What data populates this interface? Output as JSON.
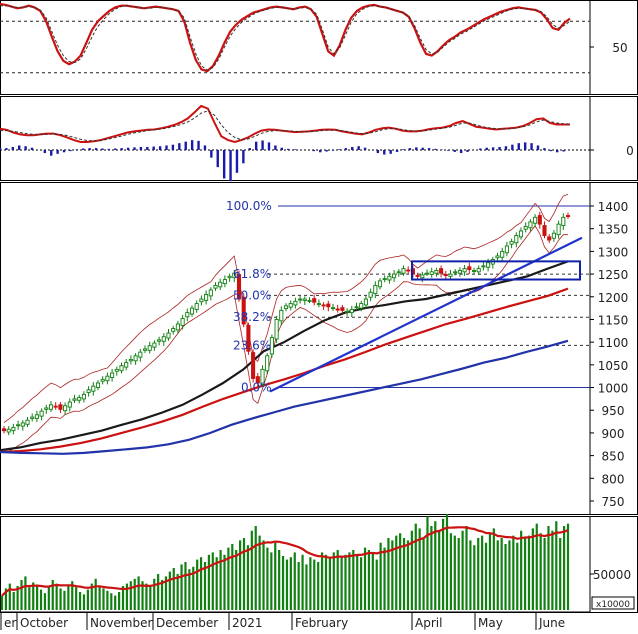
{
  "chart_data": [
    {
      "panel": "oscillator",
      "type": "line",
      "ylim": [
        0,
        100
      ],
      "y_ticks": [
        "50"
      ],
      "reference_levels": [
        80,
        20
      ],
      "series": [
        {
          "color": "#cc1111",
          "style": "solid",
          "values": [
            100,
            99,
            97,
            95,
            96,
            98,
            96,
            92,
            80,
            62,
            45,
            34,
            30,
            33,
            40,
            55,
            70,
            80,
            86,
            92,
            96,
            98,
            98,
            97,
            96,
            95,
            96,
            97,
            96,
            95,
            94,
            92,
            80,
            55,
            35,
            24,
            22,
            28,
            40,
            55,
            68,
            76,
            82,
            86,
            90,
            92,
            94,
            96,
            97,
            96,
            95,
            94,
            96,
            97,
            94,
            85,
            65,
            45,
            40,
            52,
            70,
            84,
            92,
            96,
            98,
            99,
            97,
            96,
            94,
            92,
            90,
            85,
            72,
            55,
            42,
            40,
            45,
            52,
            58,
            62,
            67,
            70,
            74,
            78,
            82,
            85,
            88,
            91,
            93,
            95,
            96,
            95,
            94,
            93,
            90,
            82,
            72,
            70,
            78,
            83
          ]
        },
        {
          "color": "#333333",
          "style": "dashed",
          "values": [
            98,
            98,
            97,
            96,
            96,
            97,
            96,
            93,
            84,
            68,
            52,
            40,
            33,
            32,
            36,
            48,
            62,
            74,
            82,
            89,
            94,
            97,
            98,
            97,
            96,
            95,
            95,
            96,
            96,
            95,
            94,
            92,
            84,
            62,
            42,
            28,
            23,
            26,
            36,
            50,
            63,
            72,
            79,
            84,
            88,
            91,
            93,
            95,
            96,
            96,
            95,
            94,
            95,
            96,
            94,
            88,
            70,
            50,
            42,
            49,
            64,
            79,
            89,
            94,
            97,
            98,
            97,
            96,
            94,
            92,
            90,
            86,
            75,
            60,
            47,
            42,
            44,
            50,
            56,
            60,
            65,
            68,
            72,
            76,
            80,
            83,
            86,
            89,
            92,
            94,
            95,
            95,
            94,
            93,
            91,
            85,
            76,
            72,
            75,
            80
          ]
        }
      ]
    },
    {
      "panel": "macd",
      "type": "bar",
      "y_ticks": [
        "0"
      ],
      "ylim": [
        -1,
        1
      ],
      "histogram": [
        0.05,
        0.05,
        0.08,
        0.12,
        0.1,
        0.06,
        0.0,
        -0.08,
        -0.15,
        -0.1,
        -0.06,
        -0.03,
        0.02,
        0.04,
        0.05,
        0.05,
        0.04,
        0.03,
        0.04,
        0.05,
        0.06,
        0.07,
        0.08,
        0.08,
        0.09,
        0.1,
        0.12,
        0.14,
        0.18,
        0.22,
        0.26,
        0.24,
        0.12,
        -0.2,
        -0.45,
        -0.75,
        -0.82,
        -0.6,
        -0.35,
        0.05,
        0.22,
        0.25,
        0.2,
        0.12,
        0.06,
        0.03,
        0.02,
        0.01,
        0.0,
        -0.03,
        -0.06,
        -0.04,
        -0.02,
        0.02,
        0.05,
        0.08,
        0.1,
        0.06,
        0.0,
        -0.08,
        -0.12,
        -0.1,
        -0.05,
        0.02,
        0.05,
        0.07,
        0.06,
        0.05,
        0.03,
        0.01,
        -0.02,
        -0.05,
        -0.08,
        -0.05,
        0.0,
        0.04,
        0.06,
        0.07,
        0.08,
        0.1,
        0.14,
        0.18,
        0.2,
        0.18,
        0.12,
        0.05,
        -0.03,
        -0.06,
        -0.04,
        0.0
      ],
      "series": [
        {
          "color": "#cc1111",
          "style": "solid",
          "values": [
            0.35,
            0.32,
            0.25,
            0.2,
            0.18,
            0.18,
            0.2,
            0.22,
            0.22,
            0.18,
            0.12,
            0.05,
            0.0,
            0.0,
            0.02,
            0.05,
            0.1,
            0.15,
            0.2,
            0.25,
            0.28,
            0.3,
            0.32,
            0.33,
            0.36,
            0.4,
            0.45,
            0.52,
            0.62,
            0.78,
            0.95,
            0.88,
            0.5,
            0.15,
            0.05,
            0.0,
            0.05,
            0.12,
            0.22,
            0.3,
            0.33,
            0.32,
            0.3,
            0.28,
            0.26,
            0.27,
            0.28,
            0.3,
            0.32,
            0.33,
            0.32,
            0.28,
            0.25,
            0.22,
            0.2,
            0.25,
            0.32,
            0.36,
            0.38,
            0.35,
            0.3,
            0.28,
            0.28,
            0.3,
            0.34,
            0.36,
            0.38,
            0.42,
            0.5,
            0.55,
            0.48,
            0.4,
            0.38,
            0.35,
            0.33,
            0.35,
            0.36,
            0.38,
            0.42,
            0.5,
            0.6,
            0.62,
            0.5,
            0.46,
            0.46,
            0.46
          ]
        },
        {
          "color": "#333333",
          "style": "dashed",
          "values": [
            0.3,
            0.3,
            0.28,
            0.25,
            0.22,
            0.2,
            0.2,
            0.2,
            0.21,
            0.2,
            0.17,
            0.12,
            0.07,
            0.04,
            0.03,
            0.04,
            0.07,
            0.11,
            0.15,
            0.2,
            0.24,
            0.27,
            0.3,
            0.32,
            0.34,
            0.37,
            0.41,
            0.46,
            0.53,
            0.63,
            0.76,
            0.82,
            0.7,
            0.45,
            0.25,
            0.12,
            0.06,
            0.08,
            0.15,
            0.23,
            0.28,
            0.3,
            0.3,
            0.29,
            0.28,
            0.27,
            0.27,
            0.28,
            0.3,
            0.31,
            0.31,
            0.3,
            0.27,
            0.24,
            0.22,
            0.23,
            0.27,
            0.32,
            0.35,
            0.35,
            0.33,
            0.3,
            0.29,
            0.29,
            0.31,
            0.34,
            0.36,
            0.39,
            0.44,
            0.5,
            0.5,
            0.45,
            0.4,
            0.37,
            0.35,
            0.34,
            0.35,
            0.37,
            0.4,
            0.45,
            0.53,
            0.58,
            0.54,
            0.5,
            0.48,
            0.47
          ]
        }
      ]
    },
    {
      "panel": "price",
      "type": "line",
      "ylim": [
        720,
        1450
      ],
      "y_ticks": [
        "1400",
        "1350",
        "1300",
        "1250",
        "1200",
        "1150",
        "1100",
        "1050",
        "1000",
        "950",
        "900",
        "850",
        "800",
        "750"
      ],
      "close": [
        905,
        908,
        912,
        918,
        922,
        928,
        935,
        940,
        948,
        955,
        962,
        958,
        952,
        960,
        968,
        975,
        978,
        985,
        995,
        1003,
        1010,
        1018,
        1025,
        1032,
        1040,
        1048,
        1055,
        1062,
        1070,
        1078,
        1085,
        1092,
        1098,
        1105,
        1112,
        1120,
        1130,
        1140,
        1152,
        1165,
        1175,
        1185,
        1195,
        1205,
        1215,
        1225,
        1232,
        1238,
        1245,
        1252,
        1195,
        1140,
        1080,
        1020,
        1010,
        1040,
        1070,
        1110,
        1150,
        1170,
        1180,
        1185,
        1190,
        1195,
        1195,
        1192,
        1188,
        1185,
        1180,
        1178,
        1176,
        1172,
        1170,
        1168,
        1172,
        1178,
        1185,
        1195,
        1210,
        1225,
        1235,
        1240,
        1245,
        1250,
        1255,
        1262,
        1258,
        1250,
        1245,
        1248,
        1252,
        1255,
        1258,
        1252,
        1248,
        1250,
        1255,
        1258,
        1262,
        1260,
        1258,
        1262,
        1268,
        1275,
        1282,
        1290,
        1300,
        1312,
        1322,
        1335,
        1345,
        1355,
        1365,
        1375,
        1360,
        1335,
        1325,
        1340,
        1360,
        1375,
        1378
      ],
      "series": [
        {
          "name": "",
          "color": "#1a1a1a",
          "role": "moving-average",
          "values": [
            862,
            868,
            878,
            885,
            895,
            905,
            918,
            930,
            945,
            962,
            985,
            1010,
            1040,
            1080,
            1100,
            1125,
            1148,
            1165,
            1175,
            1182,
            1190,
            1195,
            1205,
            1215,
            1225,
            1235,
            1245,
            1262,
            1278
          ]
        },
        {
          "name": "",
          "color": "#cc1111",
          "role": "moving-average",
          "values": [
            858,
            860,
            864,
            870,
            878,
            888,
            900,
            912,
            925,
            940,
            958,
            975,
            990,
            1005,
            1018,
            1032,
            1048,
            1062,
            1078,
            1095,
            1110,
            1125,
            1140,
            1152,
            1165,
            1178,
            1190,
            1202,
            1218
          ]
        },
        {
          "name": "",
          "color": "#2233aa",
          "role": "moving-average",
          "values": [
            858,
            856,
            855,
            854,
            856,
            860,
            864,
            868,
            875,
            885,
            900,
            918,
            932,
            945,
            958,
            968,
            978,
            988,
            998,
            1008,
            1018,
            1030,
            1042,
            1055,
            1065,
            1078,
            1090,
            1103
          ]
        }
      ],
      "fibonacci_levels": [
        {
          "label": "100.0%",
          "value": 1400
        },
        {
          "label": "61.8%",
          "value": 1250
        },
        {
          "label": "50.0%",
          "value": 1203
        },
        {
          "label": "38.2%",
          "value": 1155
        },
        {
          "label": "23.6%",
          "value": 1093
        },
        {
          "label": "0.0%",
          "value": 1000
        }
      ],
      "trendline": {
        "color": "#2233cc",
        "from": 1000,
        "to": 1330
      },
      "zone": {
        "color": "#1122aa",
        "low": 1238,
        "high": 1278
      }
    },
    {
      "panel": "volume",
      "type": "bar",
      "y_ticks": [
        "50000"
      ],
      "unit_label": "x10000",
      "bar_color": "#108010",
      "ma_color": "#cc1111",
      "x_ticks": [
        "er",
        "October",
        "November",
        "December",
        "2021",
        "February",
        "April",
        "May",
        "June"
      ],
      "values": [
        12,
        18,
        22,
        15,
        20,
        25,
        28,
        19,
        23,
        21,
        17,
        14,
        20,
        25,
        22,
        18,
        16,
        20,
        24,
        19,
        15,
        13,
        17,
        22,
        26,
        20,
        18,
        16,
        14,
        12,
        15,
        20,
        22,
        24,
        26,
        28,
        24,
        22,
        20,
        26,
        30,
        25,
        28,
        32,
        35,
        30,
        38,
        40,
        34,
        36,
        42,
        44,
        40,
        46,
        48,
        44,
        50,
        46,
        52,
        55,
        50,
        58,
        60,
        54,
        66,
        70,
        62,
        58,
        52,
        48,
        56,
        50,
        45,
        42,
        44,
        48,
        40,
        46,
        38,
        44,
        42,
        40,
        48,
        46,
        44,
        48,
        50,
        45,
        46,
        48,
        50,
        46,
        44,
        52,
        50,
        48,
        42,
        56,
        52,
        60,
        58,
        62,
        64,
        60,
        58,
        66,
        72,
        68,
        60,
        78,
        70,
        74,
        66,
        76,
        80,
        64,
        62,
        60,
        66,
        70,
        58,
        54,
        60,
        62,
        56,
        64,
        68,
        58,
        60,
        55,
        58,
        62,
        56,
        66,
        60,
        62,
        68,
        72,
        64,
        60,
        70,
        66,
        74,
        60,
        70,
        72
      ]
    }
  ]
}
